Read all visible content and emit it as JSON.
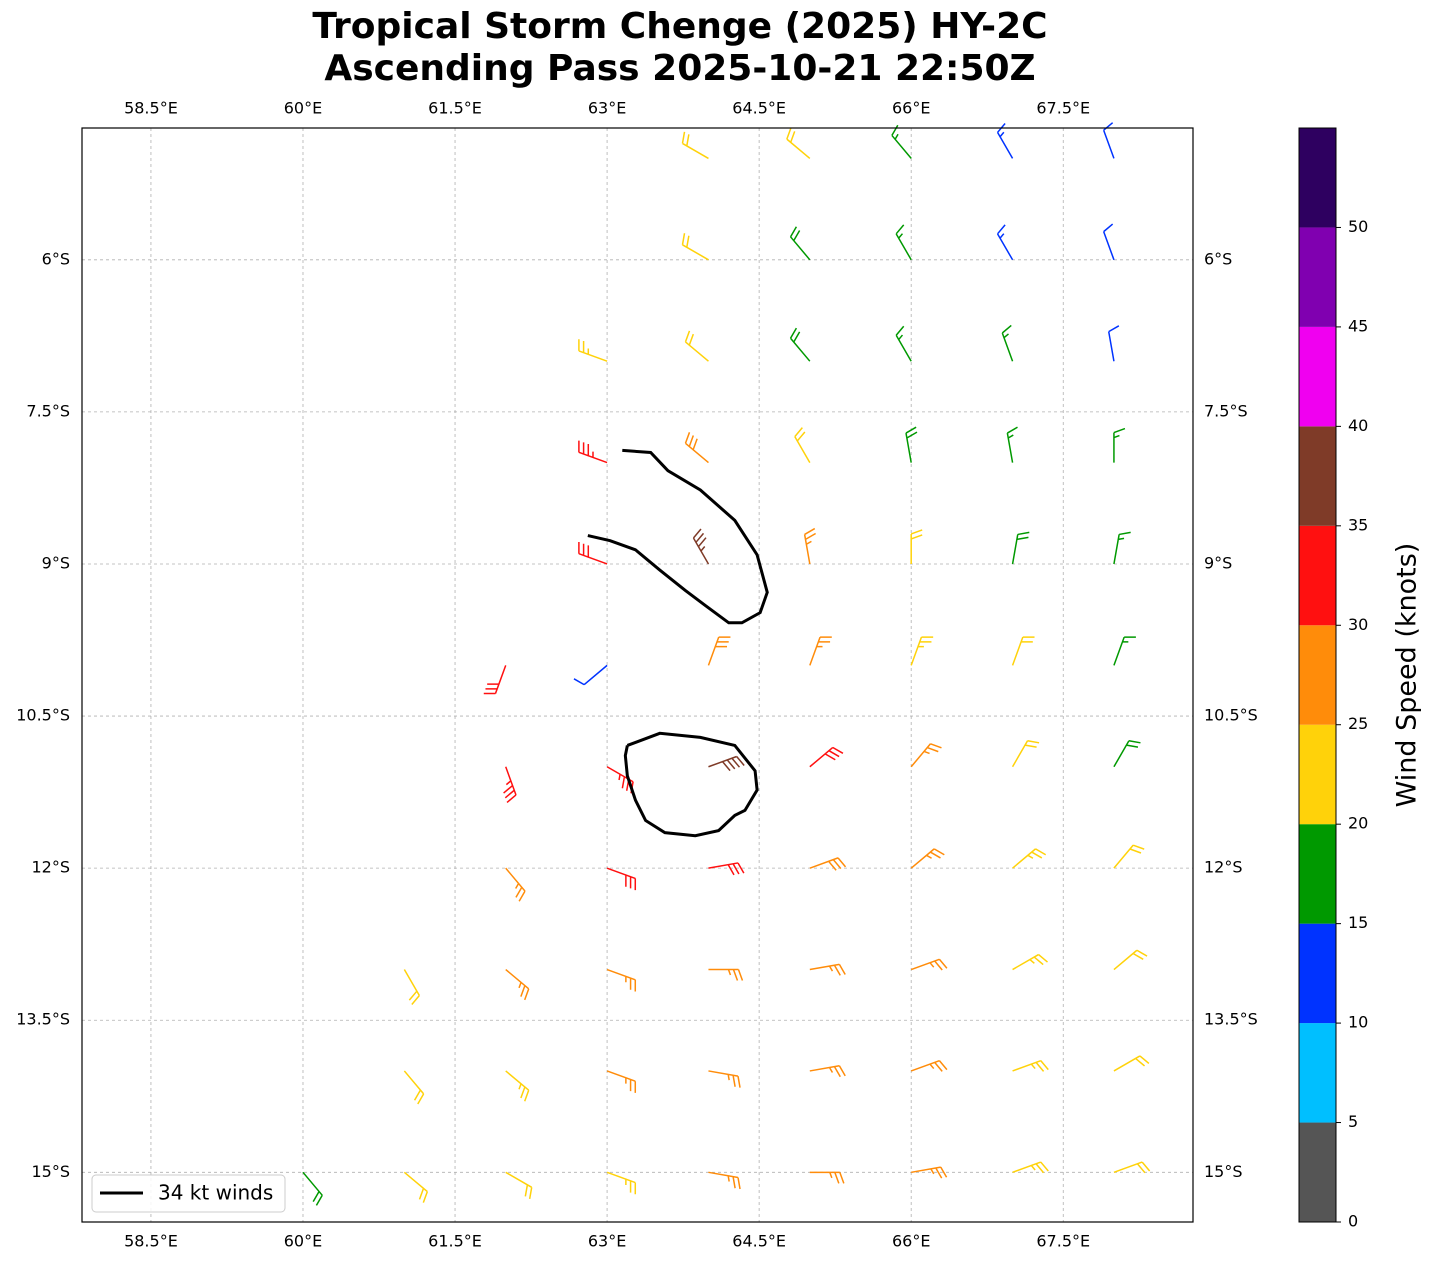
{
  "chart_data": {
    "type": "wind-barbs",
    "title": [
      "Tropical Storm Chenge (2025) HY-2C",
      "Ascending Pass 2025-10-21 22:50Z"
    ],
    "xlim": [
      57.82,
      68.78
    ],
    "ylim": [
      -15.49,
      -4.7
    ],
    "xticks": [
      {
        "value": 58.5,
        "label": "58.5°E"
      },
      {
        "value": 60,
        "label": "60°E"
      },
      {
        "value": 61.5,
        "label": "61.5°E"
      },
      {
        "value": 63,
        "label": "63°E"
      },
      {
        "value": 64.5,
        "label": "64.5°E"
      },
      {
        "value": 66,
        "label": "66°E"
      },
      {
        "value": 67.5,
        "label": "67.5°E"
      }
    ],
    "yticks": [
      {
        "value": -6,
        "label": "6°S"
      },
      {
        "value": -7.5,
        "label": "7.5°S"
      },
      {
        "value": -9,
        "label": "9°S"
      },
      {
        "value": -10.5,
        "label": "10.5°S"
      },
      {
        "value": -12,
        "label": "12°S"
      },
      {
        "value": -13.5,
        "label": "13.5°S"
      },
      {
        "value": -15,
        "label": "15°S"
      }
    ],
    "grid": true,
    "legend": "lower left",
    "barbs": {
      "lons": [
        59,
        60,
        61,
        62,
        63,
        64,
        65,
        66,
        67,
        68
      ],
      "lats": [
        -5,
        -6,
        -7,
        -8,
        -9,
        -10,
        -11,
        -12,
        -13,
        -14,
        -15
      ],
      "speed": [
        [
          null,
          null,
          null,
          null,
          null,
          20,
          20,
          15,
          13,
          10
        ],
        [
          null,
          null,
          null,
          null,
          null,
          22,
          18,
          15,
          13,
          10
        ],
        [
          null,
          null,
          null,
          null,
          23,
          22,
          18,
          15,
          15,
          12
        ],
        [
          null,
          null,
          null,
          null,
          33,
          28,
          22,
          18,
          17,
          15
        ],
        [
          null,
          null,
          null,
          null,
          30,
          36,
          27,
          22,
          18,
          15
        ],
        [
          null,
          null,
          null,
          32,
          12,
          28,
          27,
          23,
          20,
          17
        ],
        [
          null,
          null,
          null,
          33,
          34,
          38,
          30,
          25,
          22,
          18
        ],
        [
          null,
          null,
          null,
          27,
          30,
          32,
          28,
          25,
          23,
          22
        ],
        [
          null,
          null,
          22,
          25,
          27,
          27,
          26,
          25,
          24,
          22
        ],
        [
          null,
          null,
          22,
          23,
          25,
          26,
          27,
          26,
          24,
          22
        ],
        [
          null,
          18,
          20,
          22,
          23,
          25,
          27,
          25,
          23,
          22
        ]
      ],
      "direction": [
        [
          null,
          null,
          null,
          null,
          null,
          300,
          310,
          320,
          330,
          340
        ],
        [
          null,
          null,
          null,
          null,
          null,
          300,
          320,
          330,
          330,
          340
        ],
        [
          null,
          null,
          null,
          null,
          290,
          310,
          320,
          330,
          340,
          350
        ],
        [
          null,
          null,
          null,
          null,
          290,
          310,
          330,
          350,
          350,
          0
        ],
        [
          null,
          null,
          null,
          null,
          290,
          330,
          350,
          0,
          10,
          10
        ],
        [
          null,
          null,
          null,
          200,
          230,
          20,
          20,
          20,
          20,
          20
        ],
        [
          null,
          null,
          null,
          160,
          120,
          70,
          50,
          40,
          30,
          30
        ],
        [
          null,
          null,
          null,
          140,
          110,
          80,
          70,
          50,
          50,
          40
        ],
        [
          null,
          null,
          150,
          130,
          110,
          90,
          80,
          70,
          60,
          50
        ],
        [
          null,
          null,
          140,
          130,
          110,
          100,
          80,
          70,
          70,
          60
        ],
        [
          null,
          140,
          130,
          120,
          110,
          100,
          90,
          80,
          70,
          70
        ]
      ]
    },
    "series": [
      {
        "name": "34 kt winds",
        "color": "#000000",
        "contours": [
          {
            "lon": [
              63.15,
              63.43,
              63.6,
              63.92,
              64.26,
              64.48,
              64.58,
              64.51,
              64.33,
              64.2,
              63.97,
              63.77,
              63.52,
              63.28,
              63.03,
              62.81
            ],
            "lat": [
              -7.88,
              -7.9,
              -8.08,
              -8.27,
              -8.57,
              -8.91,
              -9.28,
              -9.48,
              -9.58,
              -9.58,
              -9.41,
              -9.26,
              -9.06,
              -8.86,
              -8.77,
              -8.72
            ]
          },
          {
            "lon": [
              63.2,
              63.52,
              63.92,
              64.26,
              64.46,
              64.48,
              64.36,
              64.26,
              64.1,
              63.87,
              63.57,
              63.38,
              63.28,
              63.2,
              63.18,
              63.2
            ],
            "lat": [
              -10.79,
              -10.67,
              -10.71,
              -10.79,
              -11.04,
              -11.23,
              -11.43,
              -11.48,
              -11.63,
              -11.68,
              -11.65,
              -11.53,
              -11.33,
              -11.09,
              -10.89,
              -10.79
            ]
          }
        ]
      }
    ],
    "colorbar": {
      "label": "Wind Speed (knots)",
      "lim": [
        0,
        55
      ],
      "bounds": [
        0,
        5,
        10,
        15,
        20,
        25,
        30,
        35,
        40,
        45,
        50,
        55
      ],
      "colors": [
        "#555555",
        "#00bfff",
        "#0033ff",
        "#009900",
        "#ffd20a",
        "#ff8c0a",
        "#ff1010",
        "#7f3b28",
        "#f000f0",
        "#8000b0",
        "#2e0060"
      ],
      "ticks": [
        0,
        5,
        10,
        15,
        20,
        25,
        30,
        35,
        40,
        45,
        50
      ]
    }
  }
}
